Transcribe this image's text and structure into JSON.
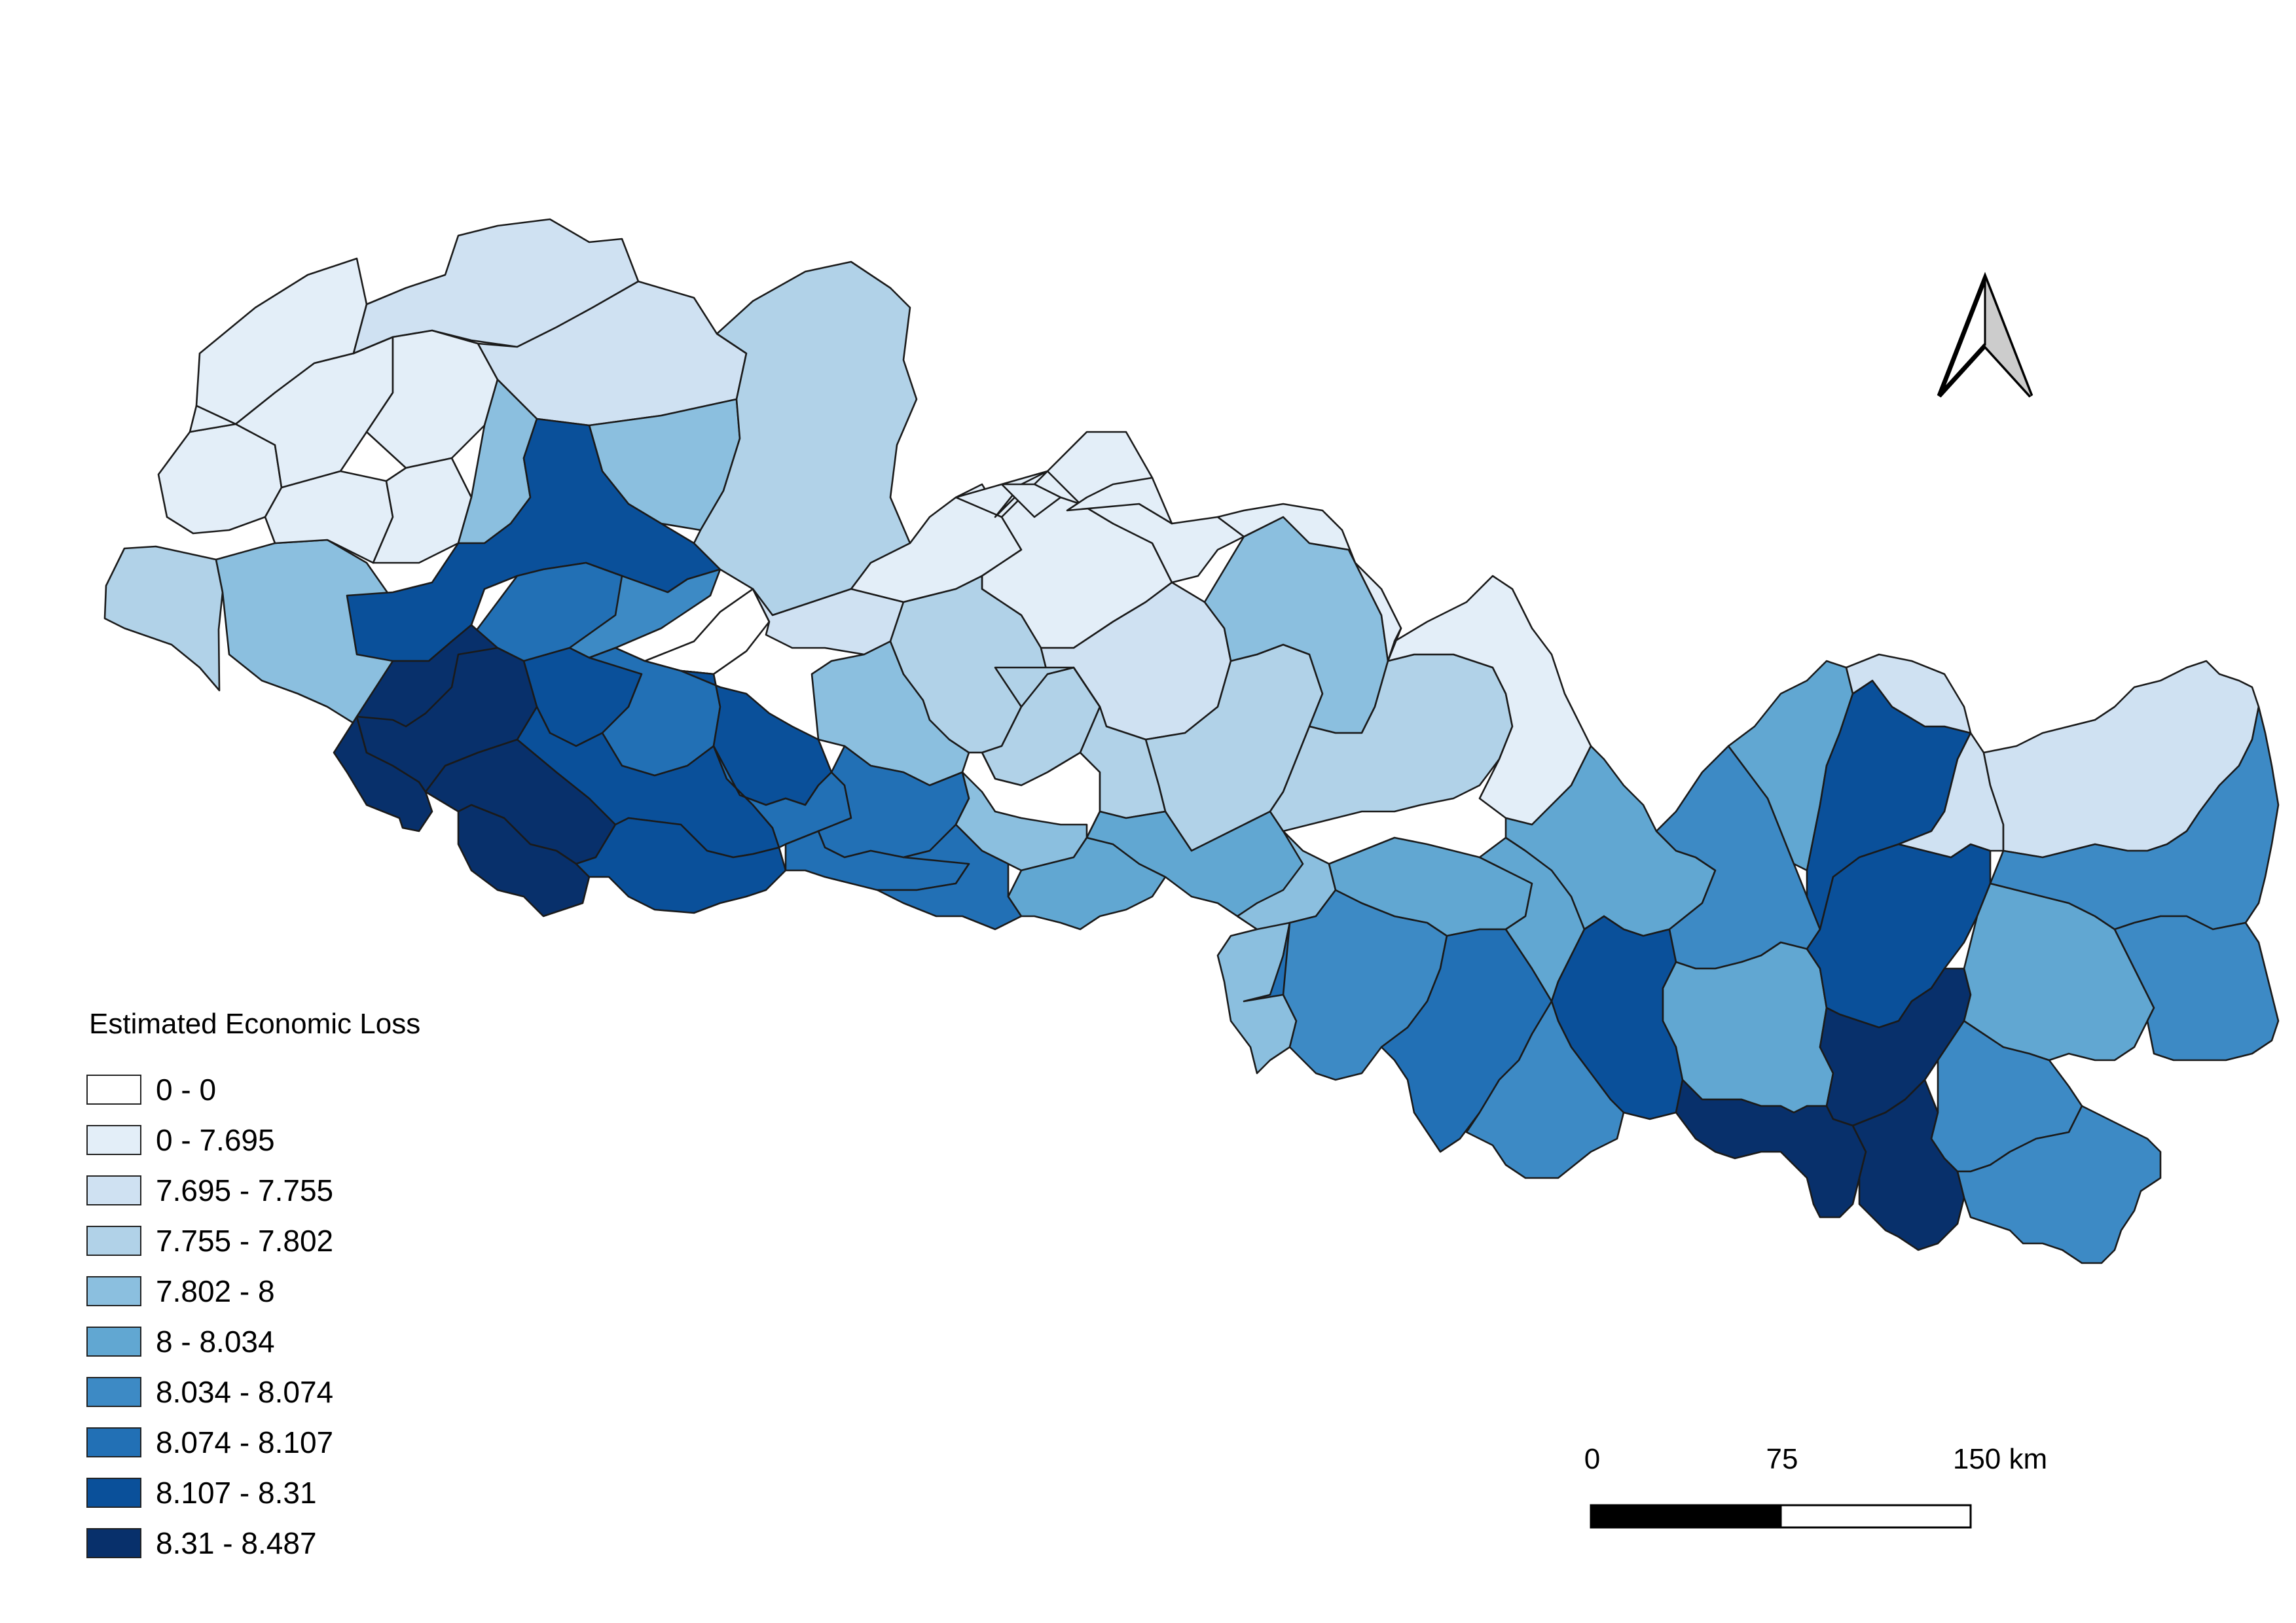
{
  "legend": {
    "title": "Estimated Economic Loss",
    "classes": [
      {
        "label": "0 - 0",
        "color": "#ffffff"
      },
      {
        "label": "0 - 7.695",
        "color": "#e3eef8"
      },
      {
        "label": "7.695 - 7.755",
        "color": "#cfe1f2"
      },
      {
        "label": "7.755 - 7.802",
        "color": "#b1d2e8"
      },
      {
        "label": "7.802 - 8",
        "color": "#8bbfdf"
      },
      {
        "label": "8 - 8.034",
        "color": "#61a7d2"
      },
      {
        "label": "8.034 - 8.074",
        "color": "#3d8ac5"
      },
      {
        "label": "8.074 - 8.107",
        "color": "#2270b5"
      },
      {
        "label": "8.107 - 8.31",
        "color": "#0a509a"
      },
      {
        "label": "8.31 - 8.487",
        "color": "#08306b"
      }
    ]
  },
  "scale_bar": {
    "labels": [
      "0",
      "75",
      "150 km"
    ]
  },
  "north_arrow": {
    "icon": "north-arrow-icon"
  },
  "districts": [
    {
      "cls": 3
    },
    {
      "cls": 4
    },
    {
      "cls": 1
    },
    {
      "cls": 1
    },
    {
      "cls": 1
    },
    {
      "cls": 1
    },
    {
      "cls": 2
    },
    {
      "cls": 1
    },
    {
      "cls": 1
    },
    {
      "cls": 2
    },
    {
      "cls": 4
    },
    {
      "cls": 4
    },
    {
      "cls": 8
    },
    {
      "cls": 7
    },
    {
      "cls": 6
    },
    {
      "cls": 0
    },
    {
      "cls": 3
    },
    {
      "cls": 1
    },
    {
      "cls": 2
    },
    {
      "cls": 1
    },
    {
      "cls": 9
    },
    {
      "cls": 8
    },
    {
      "cls": 7
    },
    {
      "cls": 8
    },
    {
      "cls": 4
    },
    {
      "cls": 3
    },
    {
      "cls": 3
    },
    {
      "cls": 2
    },
    {
      "cls": 3
    },
    {
      "cls": 1
    },
    {
      "cls": 9
    },
    {
      "cls": 9
    },
    {
      "cls": 8
    },
    {
      "cls": 7
    },
    {
      "cls": 7
    },
    {
      "cls": 0
    },
    {
      "cls": 3
    },
    {
      "cls": 4
    },
    {
      "cls": 1
    },
    {
      "cls": 1
    },
    {
      "cls": 9
    },
    {
      "cls": 9
    },
    {
      "cls": 8
    },
    {
      "cls": 7
    },
    {
      "cls": 4
    },
    {
      "cls": 7
    },
    {
      "cls": 5
    },
    {
      "cls": 5
    },
    {
      "cls": 3
    },
    {
      "cls": 1
    },
    {
      "cls": 4
    },
    {
      "cls": 6
    },
    {
      "cls": 5
    },
    {
      "cls": 7
    },
    {
      "cls": 5
    },
    {
      "cls": 5
    },
    {
      "cls": 8
    },
    {
      "cls": 6
    },
    {
      "cls": 6
    },
    {
      "cls": 5
    },
    {
      "cls": 5
    },
    {
      "cls": 8
    },
    {
      "cls": 8
    },
    {
      "cls": 9
    },
    {
      "cls": 9
    },
    {
      "cls": 9
    },
    {
      "cls": 6
    },
    {
      "cls": 6
    },
    {
      "cls": 5
    },
    {
      "cls": 2
    },
    {
      "cls": 2
    },
    {
      "cls": 6
    },
    {
      "cls": 6
    }
  ]
}
